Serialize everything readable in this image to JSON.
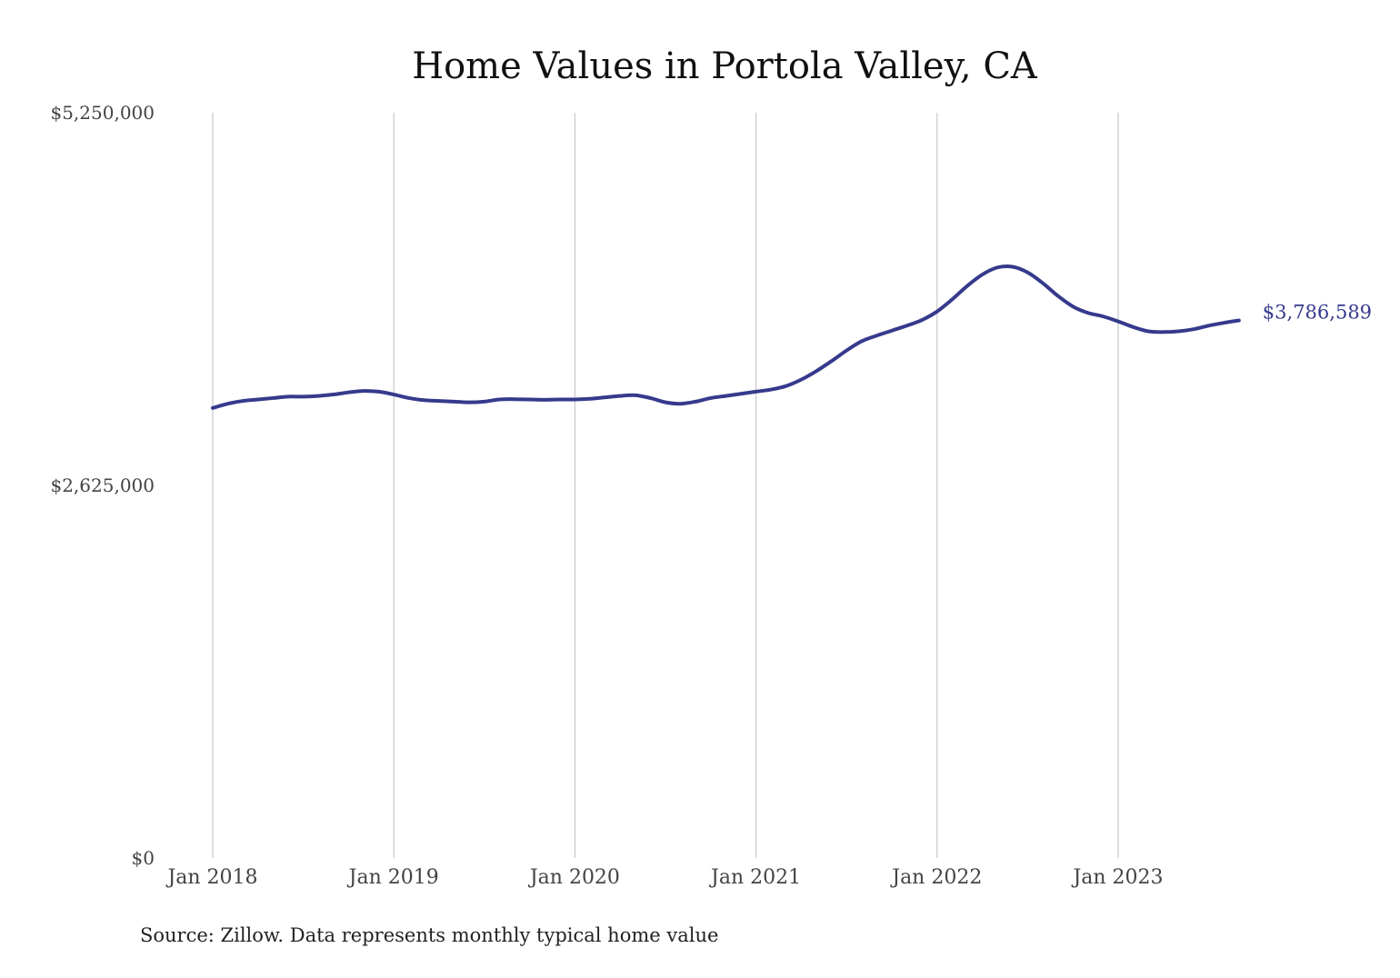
{
  "chart_data": {
    "type": "line",
    "title": "Home Values in Portola Valley, CA",
    "xlabel": "",
    "ylabel": "",
    "source": "Source: Zillow. Data represents monthly typical home value",
    "ylim": [
      0,
      5250000
    ],
    "xlim": [
      2018.0,
      2023.75
    ],
    "y_ticks": [
      {
        "value": 5250000,
        "label": "$5,250,000"
      },
      {
        "value": 2625000,
        "label": "$2,625,000"
      },
      {
        "value": 0,
        "label": "$0"
      }
    ],
    "x_ticks": [
      {
        "value": 2018,
        "label": "Jan 2018"
      },
      {
        "value": 2019,
        "label": "Jan 2019"
      },
      {
        "value": 2020,
        "label": "Jan 2020"
      },
      {
        "value": 2021,
        "label": "Jan 2021"
      },
      {
        "value": 2022,
        "label": "Jan 2022"
      },
      {
        "value": 2023,
        "label": "Jan 2023"
      }
    ],
    "grid": {
      "vertical": true,
      "horizontal": false
    },
    "series": [
      {
        "name": "Typical home value",
        "color": "#363a8c",
        "end_label": "$3,786,589",
        "x": [
          2018.0,
          2018.0833,
          2018.1667,
          2018.25,
          2018.3333,
          2018.4167,
          2018.5,
          2018.5833,
          2018.6667,
          2018.75,
          2018.8333,
          2018.9167,
          2019.0,
          2019.0833,
          2019.1667,
          2019.25,
          2019.3333,
          2019.4167,
          2019.5,
          2019.5833,
          2019.6667,
          2019.75,
          2019.8333,
          2019.9167,
          2020.0,
          2020.0833,
          2020.1667,
          2020.25,
          2020.3333,
          2020.4167,
          2020.5,
          2020.5833,
          2020.6667,
          2020.75,
          2020.8333,
          2020.9167,
          2021.0,
          2021.0833,
          2021.1667,
          2021.25,
          2021.3333,
          2021.4167,
          2021.5,
          2021.5833,
          2021.6667,
          2021.75,
          2021.8333,
          2021.9167,
          2022.0,
          2022.0833,
          2022.1667,
          2022.25,
          2022.3333,
          2022.4167,
          2022.5,
          2022.5833,
          2022.6667,
          2022.75,
          2022.8333,
          2022.9167,
          2023.0,
          2023.0833,
          2023.1667,
          2023.25,
          2023.3333,
          2023.4167,
          2023.5,
          2023.5833,
          2023.6667
        ],
        "values": [
          3170000,
          3200000,
          3220000,
          3230000,
          3240000,
          3250000,
          3250000,
          3255000,
          3265000,
          3280000,
          3290000,
          3285000,
          3265000,
          3240000,
          3225000,
          3220000,
          3215000,
          3210000,
          3215000,
          3230000,
          3232000,
          3230000,
          3228000,
          3230000,
          3230000,
          3235000,
          3245000,
          3255000,
          3260000,
          3240000,
          3210000,
          3200000,
          3215000,
          3240000,
          3255000,
          3270000,
          3285000,
          3300000,
          3325000,
          3370000,
          3430000,
          3500000,
          3575000,
          3640000,
          3680000,
          3715000,
          3750000,
          3790000,
          3850000,
          3935000,
          4030000,
          4110000,
          4160000,
          4165000,
          4125000,
          4050000,
          3960000,
          3885000,
          3840000,
          3815000,
          3780000,
          3740000,
          3710000,
          3705000,
          3710000,
          3725000,
          3750000,
          3770000,
          3786589
        ]
      }
    ]
  }
}
